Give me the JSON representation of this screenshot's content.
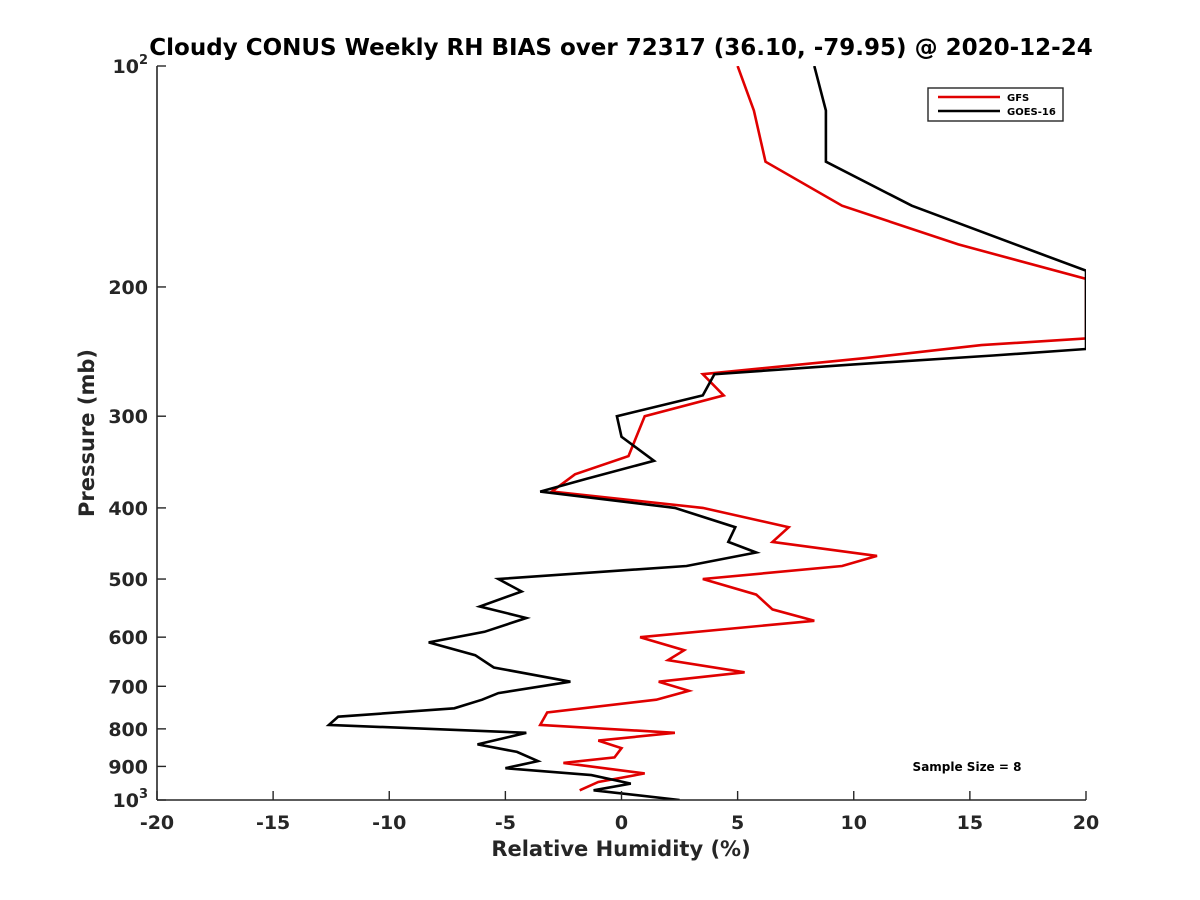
{
  "chart_data": {
    "type": "line",
    "title": "Cloudy CONUS Weekly RH BIAS over 72317 (36.10, -79.95) @ 2020-12-24",
    "xlabel": "Relative Humidity (%)",
    "ylabel": "Pressure (mb)",
    "xlim": [
      -20,
      20
    ],
    "ylim": [
      100,
      1000
    ],
    "y_scale": "log",
    "y_reversed": true,
    "grid": false,
    "legend_position": "top-right",
    "xticks": [
      -20,
      -15,
      -10,
      -5,
      0,
      5,
      10,
      15,
      20
    ],
    "xtick_labels": [
      "-20",
      "-15",
      "-10",
      "-5",
      "0",
      "5",
      "10",
      "15",
      "20"
    ],
    "yticks": [
      100,
      200,
      300,
      400,
      500,
      600,
      700,
      800,
      900,
      1000
    ],
    "ytick_labels": [
      {
        "base": "10",
        "exp": "2"
      },
      {
        "base": "200",
        "exp": ""
      },
      {
        "base": "300",
        "exp": ""
      },
      {
        "base": "400",
        "exp": ""
      },
      {
        "base": "500",
        "exp": ""
      },
      {
        "base": "600",
        "exp": ""
      },
      {
        "base": "700",
        "exp": ""
      },
      {
        "base": "800",
        "exp": ""
      },
      {
        "base": "900",
        "exp": ""
      },
      {
        "base": "10",
        "exp": "3"
      }
    ],
    "annotation": "Sample Size = 8",
    "series": [
      {
        "name": "GFS",
        "color": "#e00000",
        "points": [
          [
            5.0,
            100
          ],
          [
            5.7,
            115
          ],
          [
            6.2,
            135
          ],
          [
            9.5,
            155
          ],
          [
            14.5,
            175
          ],
          [
            20.0,
            195
          ],
          [
            20.0,
            235
          ],
          [
            15.5,
            240
          ],
          [
            10.5,
            250
          ],
          [
            3.5,
            263
          ],
          [
            4.4,
            281
          ],
          [
            1.0,
            300
          ],
          [
            0.3,
            340
          ],
          [
            -2.0,
            360
          ],
          [
            -3.0,
            380
          ],
          [
            3.5,
            400
          ],
          [
            7.2,
            425
          ],
          [
            6.5,
            445
          ],
          [
            11.0,
            465
          ],
          [
            9.5,
            480
          ],
          [
            3.5,
            500
          ],
          [
            5.8,
            525
          ],
          [
            6.5,
            550
          ],
          [
            8.3,
            570
          ],
          [
            0.8,
            600
          ],
          [
            2.7,
            625
          ],
          [
            2.0,
            645
          ],
          [
            5.3,
            670
          ],
          [
            1.6,
            690
          ],
          [
            2.9,
            710
          ],
          [
            1.5,
            730
          ],
          [
            -3.2,
            760
          ],
          [
            -3.5,
            790
          ],
          [
            2.3,
            810
          ],
          [
            -1.0,
            830
          ],
          [
            0.0,
            850
          ],
          [
            -0.3,
            875
          ],
          [
            -2.5,
            890
          ],
          [
            1.0,
            920
          ],
          [
            -1.0,
            945
          ],
          [
            -1.8,
            970
          ]
        ]
      },
      {
        "name": "GOES-16",
        "color": "#000000",
        "points": [
          [
            8.3,
            100
          ],
          [
            8.8,
            115
          ],
          [
            8.8,
            135
          ],
          [
            12.5,
            155
          ],
          [
            18.0,
            180
          ],
          [
            20.0,
            190
          ],
          [
            20.0,
            243
          ],
          [
            16.0,
            248
          ],
          [
            10.0,
            255
          ],
          [
            4.0,
            263
          ],
          [
            3.5,
            281
          ],
          [
            -0.2,
            300
          ],
          [
            0.0,
            320
          ],
          [
            1.4,
            345
          ],
          [
            -1.5,
            365
          ],
          [
            -3.5,
            380
          ],
          [
            2.3,
            400
          ],
          [
            4.9,
            425
          ],
          [
            4.6,
            445
          ],
          [
            5.8,
            460
          ],
          [
            2.8,
            480
          ],
          [
            -5.3,
            500
          ],
          [
            -4.3,
            520
          ],
          [
            -6.1,
            545
          ],
          [
            -4.1,
            565
          ],
          [
            -5.9,
            590
          ],
          [
            -8.3,
            610
          ],
          [
            -6.3,
            635
          ],
          [
            -5.5,
            660
          ],
          [
            -2.2,
            690
          ],
          [
            -5.3,
            715
          ],
          [
            -6.0,
            730
          ],
          [
            -7.2,
            750
          ],
          [
            -12.2,
            770
          ],
          [
            -12.6,
            790
          ],
          [
            -4.1,
            810
          ],
          [
            -6.2,
            840
          ],
          [
            -4.5,
            860
          ],
          [
            -3.6,
            885
          ],
          [
            -5.0,
            905
          ],
          [
            -1.3,
            925
          ],
          [
            0.4,
            950
          ],
          [
            -1.2,
            970
          ],
          [
            2.5,
            1000
          ]
        ]
      }
    ]
  }
}
